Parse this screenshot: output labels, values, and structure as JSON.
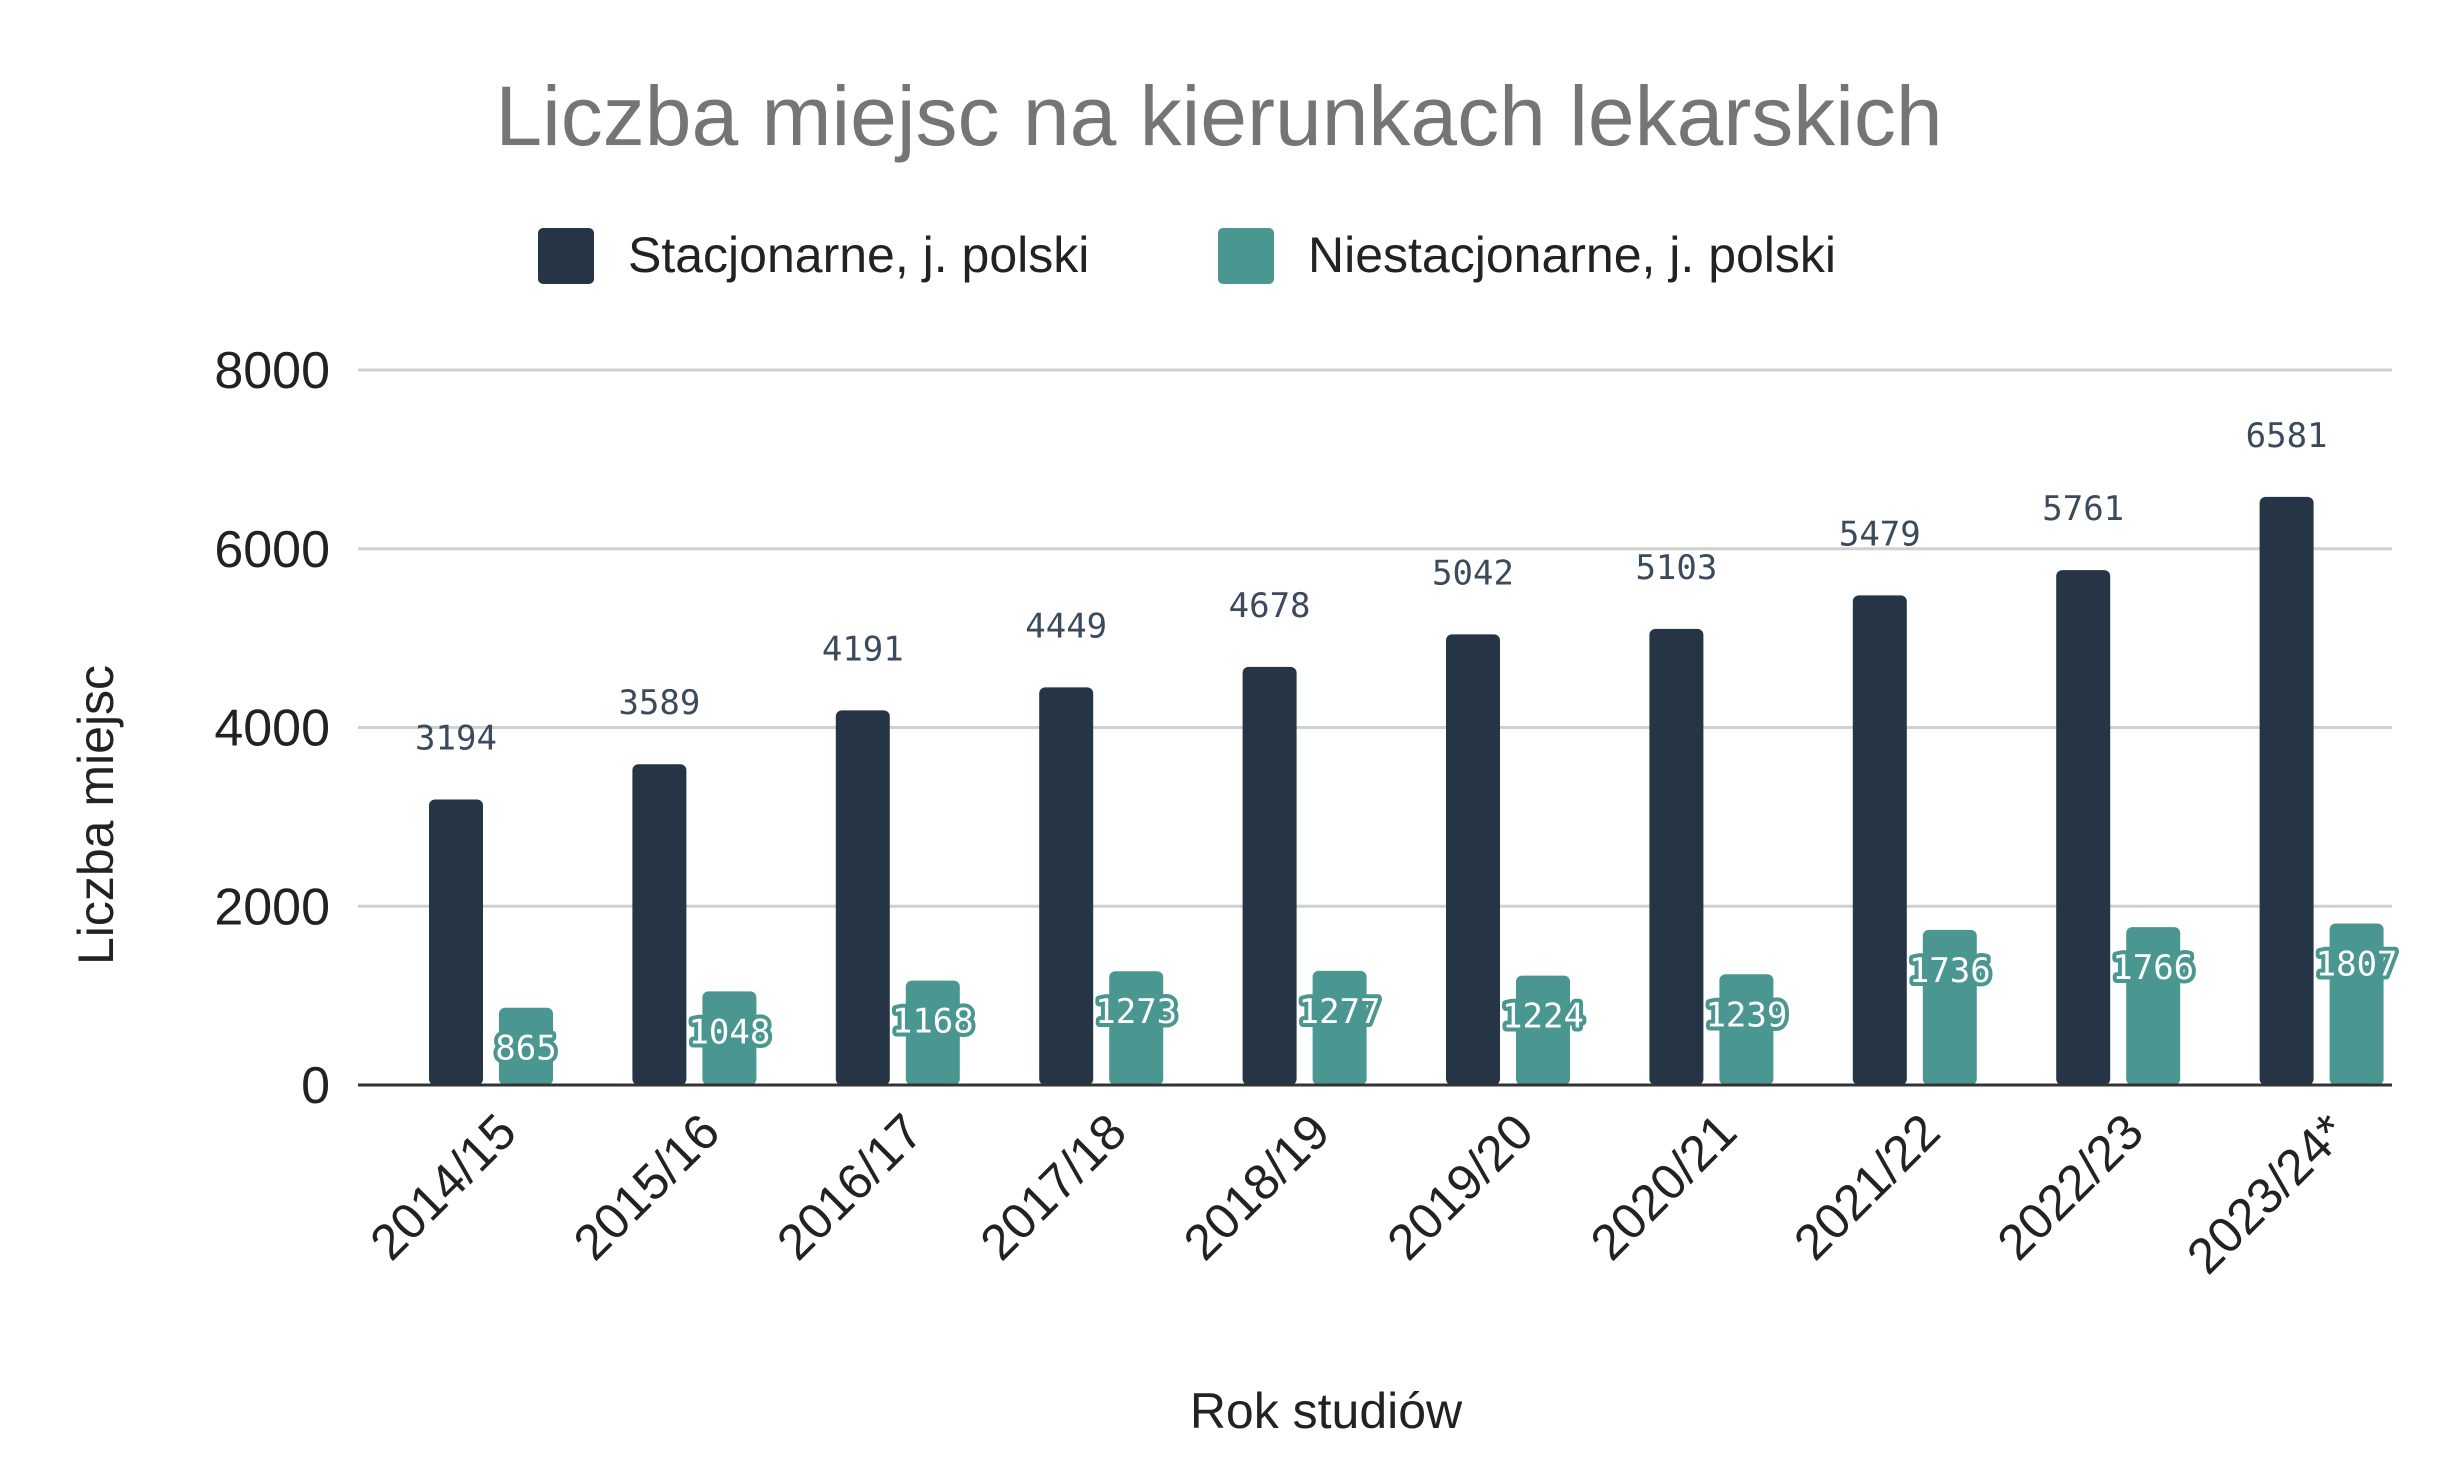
{
  "chart_data": {
    "type": "bar",
    "title": "Liczba miejsc na kierunkach lekarskich",
    "xlabel": "Rok studiów",
    "ylabel": "Liczba miejsc",
    "ylim": [
      0,
      8000
    ],
    "yticks": [
      0,
      2000,
      4000,
      6000,
      8000
    ],
    "grid": true,
    "legend_position": "top",
    "categories": [
      "2014/15",
      "2015/16",
      "2016/17",
      "2017/18",
      "2018/19",
      "2019/20",
      "2020/21",
      "2021/22",
      "2022/23",
      "2023/24*"
    ],
    "series": [
      {
        "name": "Stacjonarne, j. polski",
        "color": "#263545",
        "values": [
          3194,
          3589,
          4191,
          4449,
          4678,
          5042,
          5103,
          5479,
          5761,
          6581
        ]
      },
      {
        "name": "Niestacjonarne, j. polski",
        "color": "#4a9792",
        "values": [
          865,
          1048,
          1168,
          1273,
          1277,
          1224,
          1239,
          1736,
          1766,
          1807
        ]
      }
    ]
  }
}
